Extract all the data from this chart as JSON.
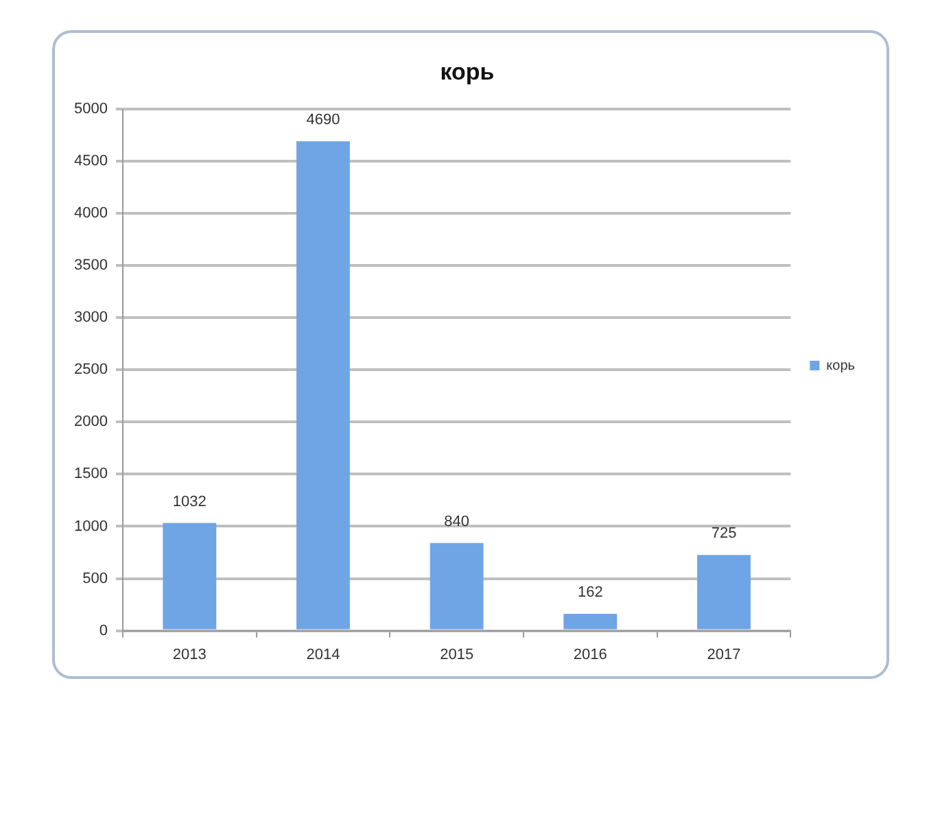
{
  "chart_data": {
    "type": "bar",
    "title": "корь",
    "categories": [
      "2013",
      "2014",
      "2015",
      "2016",
      "2017"
    ],
    "series": [
      {
        "name": "корь",
        "color": "#6fa5e5",
        "values": [
          1032,
          4690,
          840,
          162,
          725
        ]
      }
    ],
    "ylim": [
      0,
      5000
    ],
    "yticks": [
      0,
      500,
      1000,
      1500,
      2000,
      2500,
      3000,
      3500,
      4000,
      4500,
      5000
    ],
    "grid": "y",
    "legend": "right",
    "data_labels": true
  }
}
